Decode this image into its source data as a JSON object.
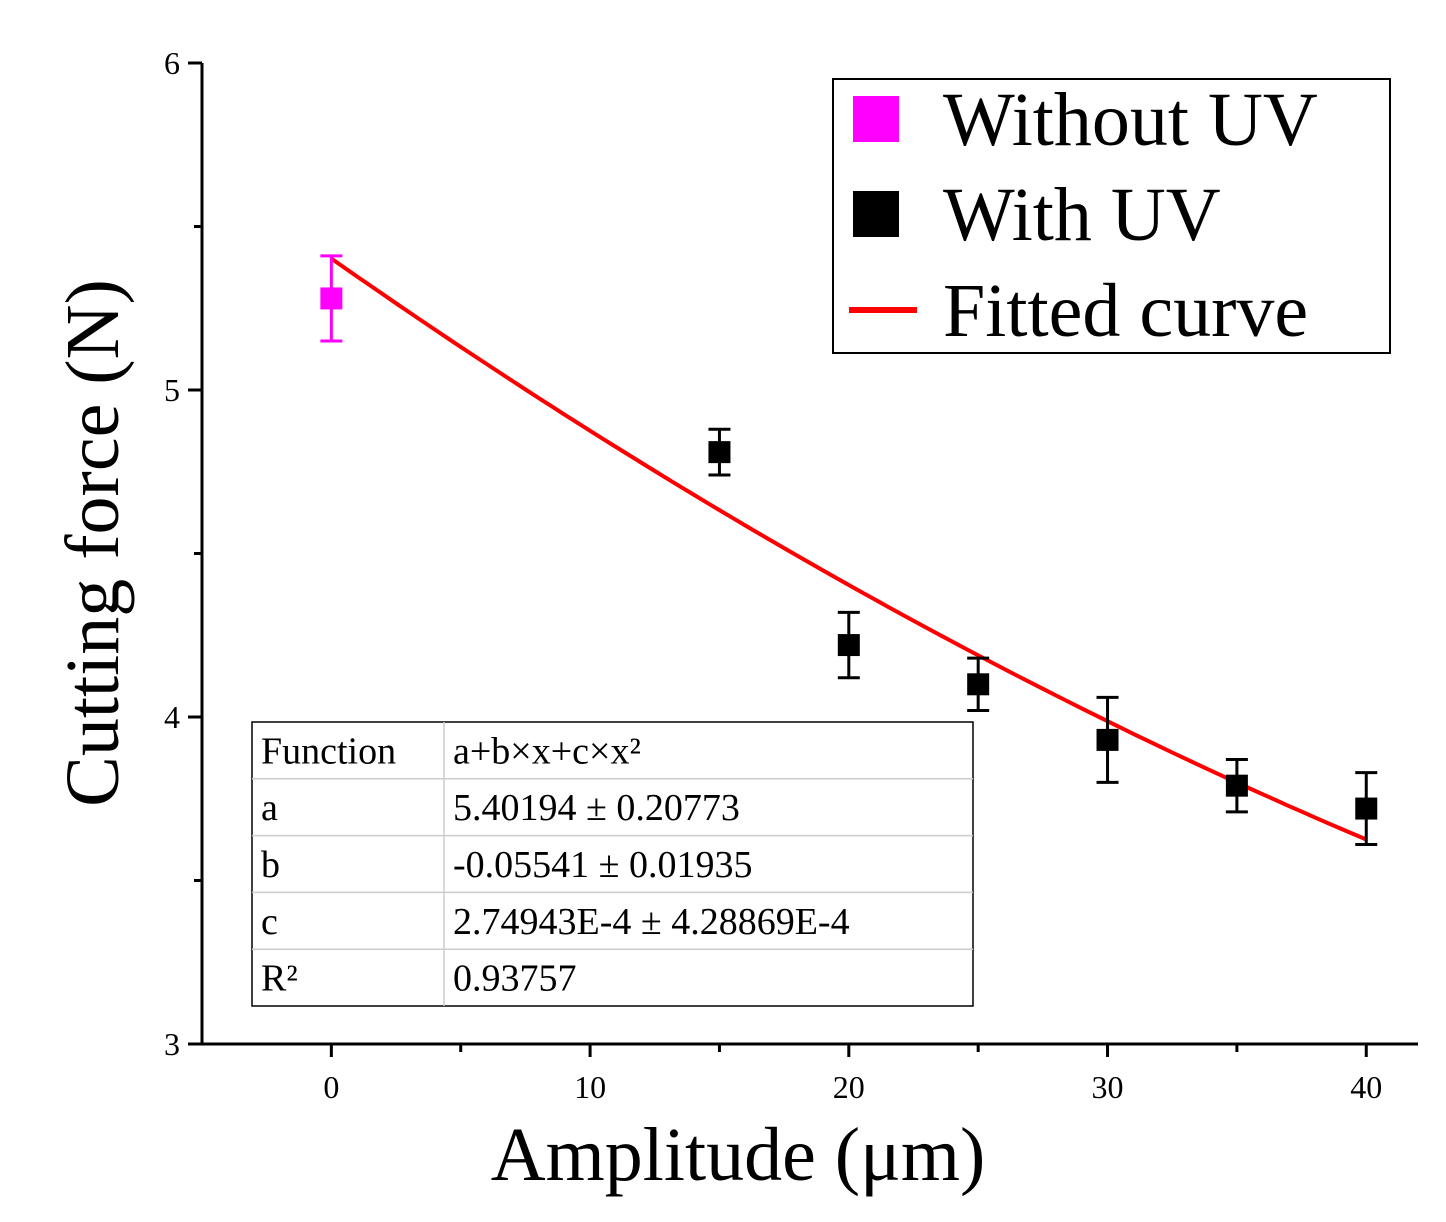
{
  "chart_data": {
    "type": "scatter",
    "title": "",
    "xlabel": "Amplitude (μm)",
    "ylabel": "Cutting force (N)",
    "xlim": [
      -5,
      42
    ],
    "ylim": [
      3,
      6
    ],
    "xticks": [
      0,
      10,
      20,
      30,
      40
    ],
    "yticks": [
      3,
      4,
      5,
      6
    ],
    "xtick_labels": [
      "0",
      "10",
      "20",
      "30",
      "40"
    ],
    "ytick_labels": [
      "3",
      "4",
      "5",
      "6"
    ],
    "grid": false,
    "legend_position": "top-right",
    "series": [
      {
        "name": "Without UV",
        "kind": "points",
        "color": "#ff00ff",
        "points": [
          {
            "x": 0,
            "y": 5.28,
            "err": 0.13
          }
        ]
      },
      {
        "name": "With UV",
        "kind": "points",
        "color": "#000000",
        "points": [
          {
            "x": 15,
            "y": 4.81,
            "err": 0.07
          },
          {
            "x": 20,
            "y": 4.22,
            "err": 0.1
          },
          {
            "x": 25,
            "y": 4.1,
            "err": 0.08
          },
          {
            "x": 30,
            "y": 3.93,
            "err": 0.13
          },
          {
            "x": 35,
            "y": 3.79,
            "err": 0.08
          },
          {
            "x": 40,
            "y": 3.72,
            "err": 0.11
          }
        ]
      },
      {
        "name": "Fitted curve",
        "kind": "curve",
        "color": "#ff0000",
        "x_range": [
          0,
          40
        ],
        "params": {
          "a": 5.40194,
          "b": -0.05541,
          "c": 0.000274943
        }
      }
    ],
    "fit_table": {
      "rows": [
        {
          "label": "Function",
          "value": "a+b×x+c×x²"
        },
        {
          "label": "a",
          "value": "5.40194 ± 0.20773"
        },
        {
          "label": "b",
          "value": "-0.05541 ± 0.01935"
        },
        {
          "label": "c",
          "value": "2.74943E-4 ± 4.28869E-4"
        },
        {
          "label": "R²",
          "value": "0.93757"
        }
      ]
    }
  }
}
